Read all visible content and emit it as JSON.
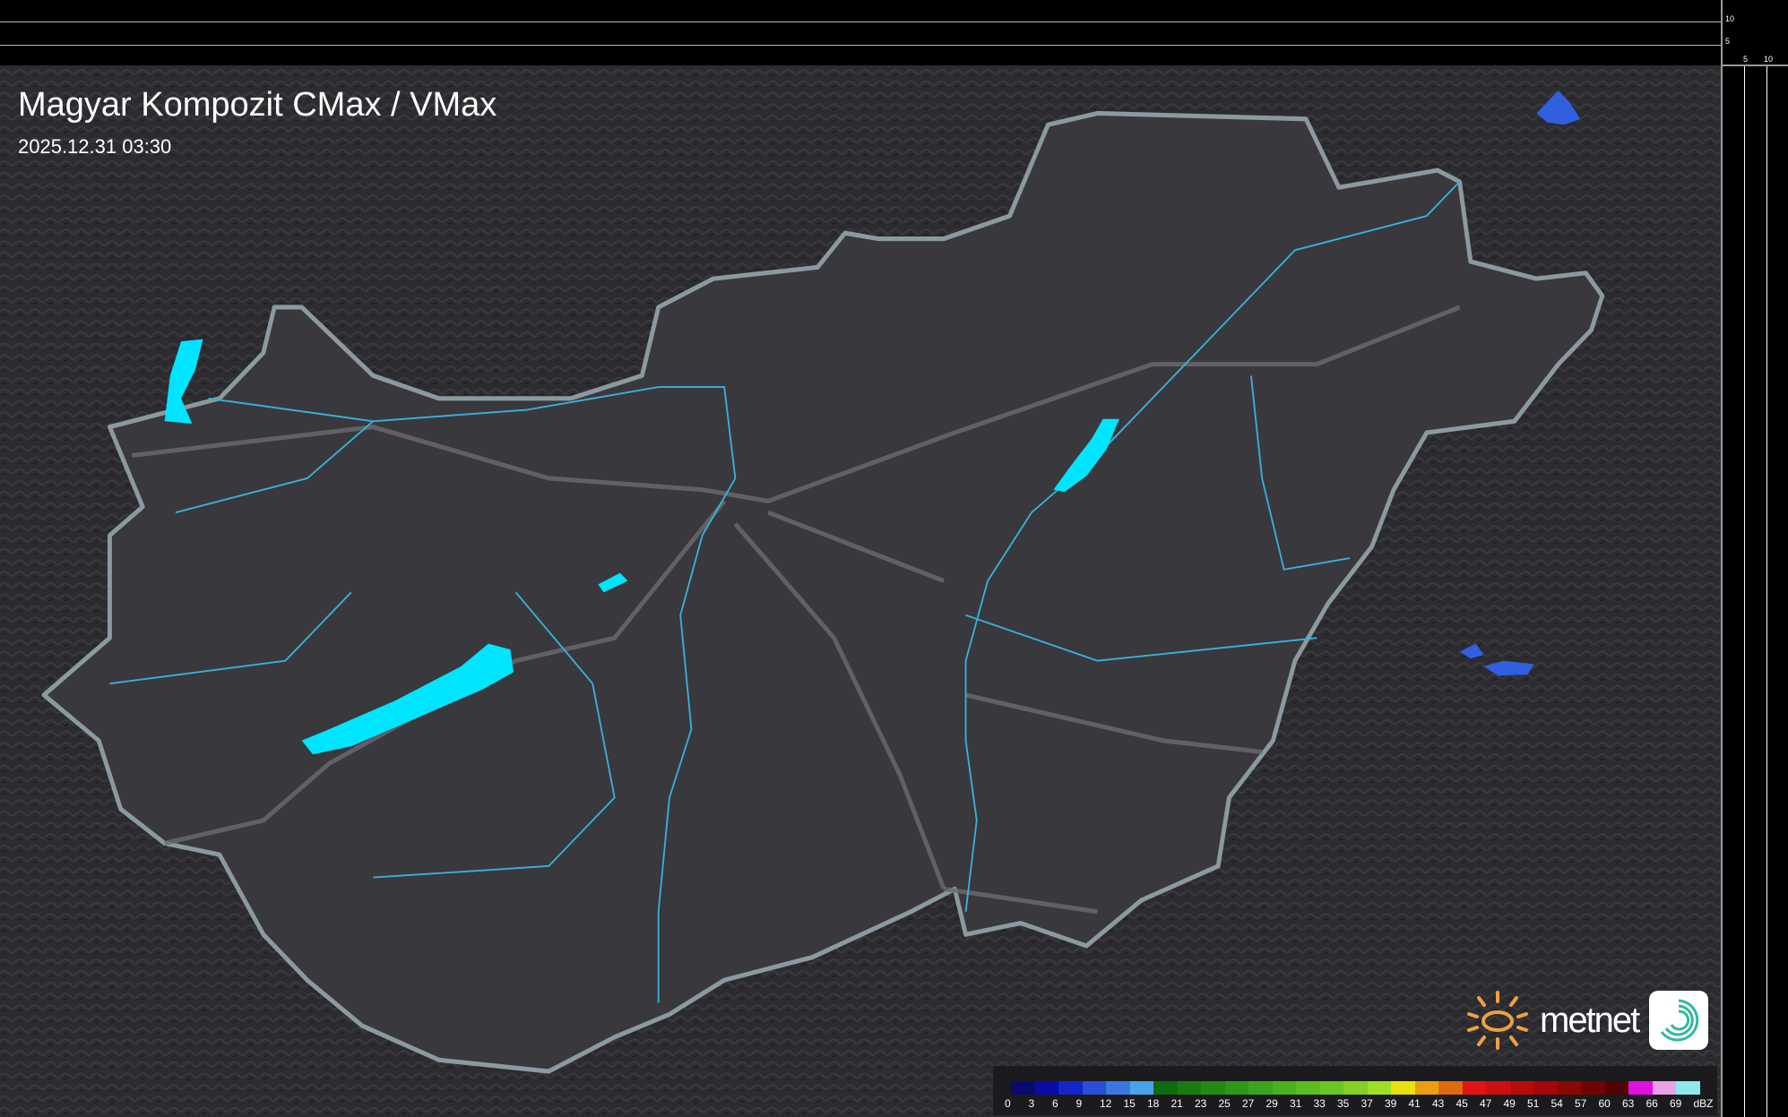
{
  "header": {
    "title": "Magyar Kompozit CMax / VMax",
    "datetime": "2025.12.31 03:30"
  },
  "scale_ticks": {
    "vertical": [
      "10",
      "5"
    ],
    "horizontal": [
      "5",
      "10"
    ]
  },
  "legend": {
    "unit": "dBZ",
    "labels": [
      "0",
      "3",
      "6",
      "9",
      "12",
      "15",
      "18",
      "21",
      "23",
      "25",
      "27",
      "29",
      "31",
      "33",
      "35",
      "37",
      "39",
      "41",
      "43",
      "45",
      "47",
      "49",
      "51",
      "54",
      "57",
      "60",
      "63",
      "66",
      "69"
    ],
    "colors": [
      "#0a0a6e",
      "#0a0aa6",
      "#1426c8",
      "#2a4ed8",
      "#3a78e0",
      "#48a4e8",
      "#106a10",
      "#1a7a10",
      "#248a14",
      "#2e9818",
      "#3aa41c",
      "#4ab01e",
      "#5abc20",
      "#6cc622",
      "#84d024",
      "#9ee028",
      "#e8e010",
      "#e8a010",
      "#e06a10",
      "#e01414",
      "#cc1010",
      "#b80c0c",
      "#a40808",
      "#8c0606",
      "#700404",
      "#500202",
      "#e010e0",
      "#e8a0e8",
      "#8ee8ec"
    ]
  },
  "logos": {
    "brand": "metnet",
    "brand_color": "#f0a040"
  },
  "colors": {
    "lakes": "#00e5ff",
    "rivers": "#3ab0d8",
    "borders": "#888888",
    "radar_echo": "#3060e0"
  }
}
